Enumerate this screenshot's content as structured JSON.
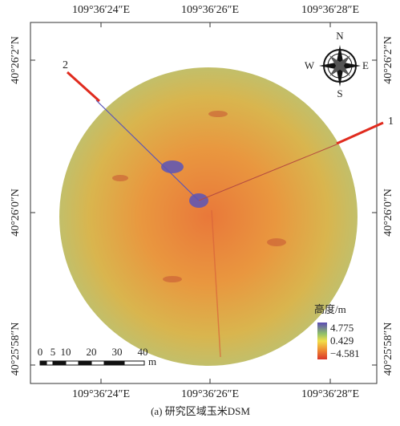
{
  "map": {
    "top_labels": [
      "109°36′24″E",
      "109°36′26″E",
      "109°36′28″E"
    ],
    "bottom_labels": [
      "109°36′24″E",
      "109°36′26″E",
      "109°36′28″E"
    ],
    "left_labels": [
      "40°26′2″N",
      "40°26′0″N",
      "40°25′58″N"
    ],
    "right_labels": [
      "40°26′2″N",
      "40°26′0″N",
      "40°25′58″N"
    ],
    "compass": [
      "N",
      "E",
      "S",
      "W"
    ],
    "transects": [
      "1",
      "2"
    ],
    "legend": {
      "title": "高度/m",
      "max": "4.775",
      "mid": "0.429",
      "min": "−4.581"
    },
    "scale": {
      "ticks": [
        "0",
        "5",
        "10",
        "20",
        "30",
        "40"
      ],
      "unit": "m"
    }
  },
  "caption": "(a) 研究区域玉米DSM"
}
